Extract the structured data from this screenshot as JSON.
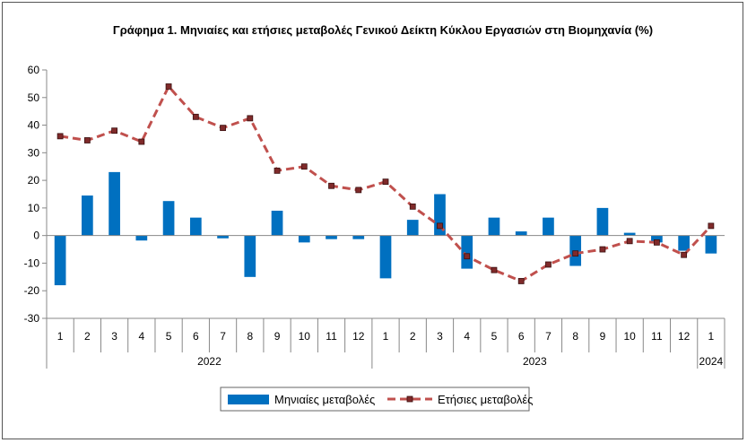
{
  "chart_data": {
    "type": "bar",
    "title": "Γράφημα 1.  Μηνιαίες και ετήσιες μεταβολές  Γενικού Δείκτη Κύκλου Εργασιών στη Βιομηχανία (%)",
    "xlabel": "",
    "ylabel": "",
    "ylim": [
      -30,
      60
    ],
    "yticks": [
      60,
      50,
      40,
      30,
      20,
      10,
      0,
      -10,
      -20,
      -30
    ],
    "grid": false,
    "legend_position": "bottom",
    "categories": [
      "1",
      "2",
      "3",
      "4",
      "5",
      "6",
      "7",
      "8",
      "9",
      "10",
      "11",
      "12",
      "1",
      "2",
      "3",
      "4",
      "5",
      "6",
      "7",
      "8",
      "9",
      "10",
      "11",
      "12",
      "1"
    ],
    "year_groups": [
      {
        "label": "2022",
        "start": 0,
        "count": 12
      },
      {
        "label": "2023",
        "start": 12,
        "count": 12
      },
      {
        "label": "2024",
        "start": 24,
        "count": 1
      }
    ],
    "series": [
      {
        "name": "Μηνιαίες μεταβολές",
        "kind": "bar",
        "color": "#0070C0",
        "values": [
          -18,
          14.5,
          23,
          -1.8,
          12.5,
          6.5,
          -1,
          -15,
          9,
          -2.5,
          -1.3,
          -1.3,
          -15.5,
          5.7,
          15,
          -12,
          6.5,
          1.5,
          6.5,
          -11,
          10,
          1,
          -2.5,
          -5.5,
          -6.5
        ]
      },
      {
        "name": "Ετήσιες μεταβολές",
        "kind": "line",
        "color": "#C0504D",
        "values": [
          36,
          34.5,
          38,
          34,
          54,
          43,
          39,
          42.5,
          23.5,
          25,
          18,
          16.5,
          19.5,
          10.5,
          3.5,
          -7.5,
          -12.5,
          -16.5,
          -10.5,
          -6.5,
          -5,
          -2,
          -2.5,
          -7,
          3.5
        ]
      }
    ]
  }
}
